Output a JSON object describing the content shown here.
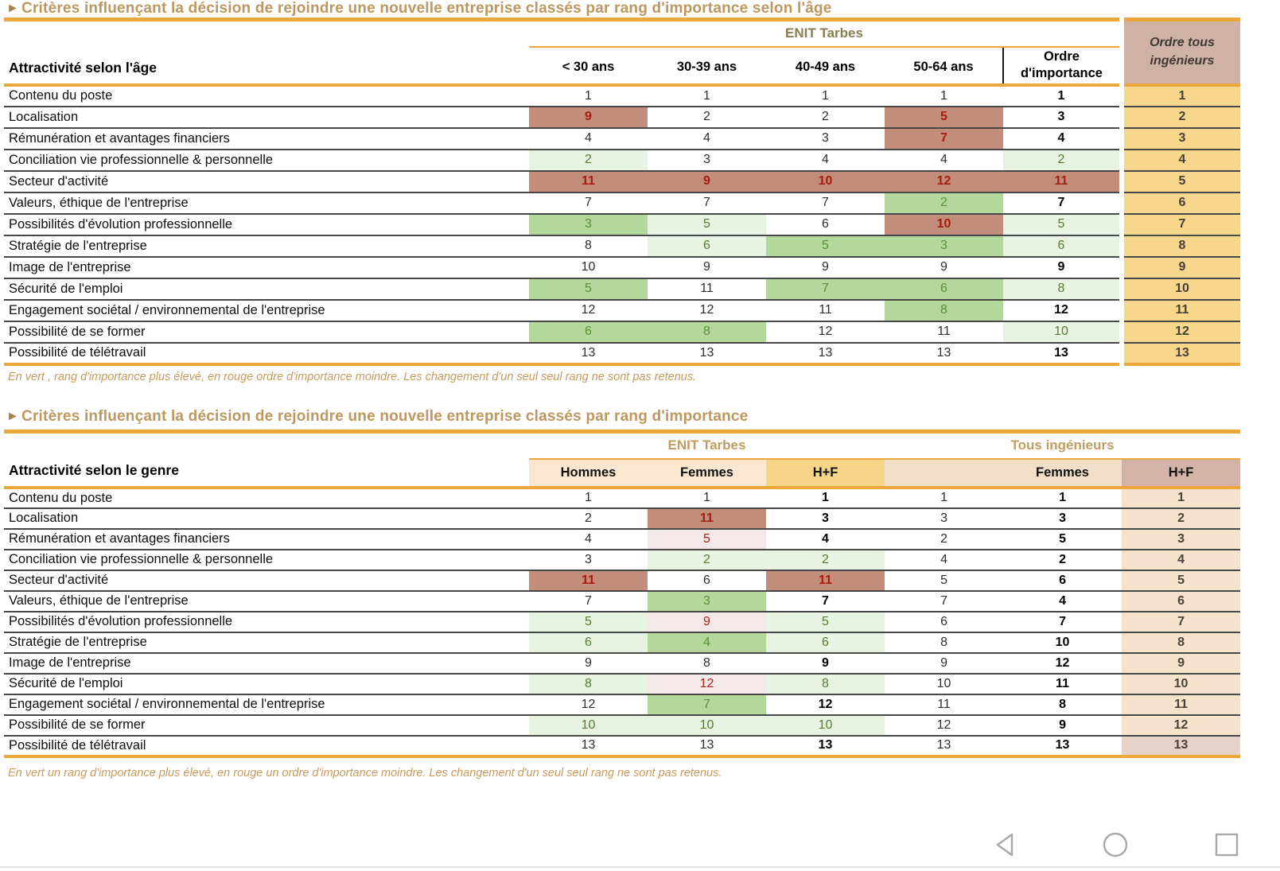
{
  "titles": {
    "arrow": "►",
    "t1": "Critères influençant la décision de rejoindre une nouvelle entreprise classés par rang d'importance selon l'âge",
    "t2": "Critères influençant la décision de rejoindre une nouvelle entreprise classés par rang d'importance"
  },
  "colors": {
    "accent_orange": "#ECA63C",
    "red_cell_bg": "#C38D7C",
    "red_text": "#A81C10",
    "pale_red_cell_bg": "#F2E9E8",
    "strong_green_cell_bg": "#B4D79B",
    "pale_green_cell_bg": "#E9F3E1",
    "green_text": "#527F2F",
    "gold_column_bg": "#F7D78C",
    "rose_header_bg": "#D0B1A5",
    "peach_header_bg": "#FBE7CF",
    "gold_header_bg": "#F5D689",
    "tan_header_bg": "#F1DFC8",
    "tan_column_bg": "#F5E3CD",
    "title_text": "#BD9760",
    "footnote_text": "#C89A5C",
    "nav_icon": "#A8A8A8"
  },
  "table_age": {
    "group": "ENIT Tarbes",
    "corner": "Attractivité selon l'âge",
    "cols": [
      "< 30 ans",
      "30-39 ans",
      "40-49 ans",
      "50-64 ans",
      "Ordre d'importance"
    ],
    "extra_col": "Ordre tous ingénieurs",
    "rows": [
      {
        "label": "Contenu du poste",
        "cells": [
          [
            "1",
            "n"
          ],
          [
            "1",
            "n"
          ],
          [
            "1",
            "n"
          ],
          [
            "1",
            "n"
          ],
          [
            "1",
            "b"
          ],
          [
            "1",
            "y"
          ]
        ]
      },
      {
        "label": "Localisation",
        "cells": [
          [
            "9",
            "r"
          ],
          [
            "2",
            "n"
          ],
          [
            "2",
            "n"
          ],
          [
            "5",
            "r"
          ],
          [
            "3",
            "b"
          ],
          [
            "2",
            "y"
          ]
        ]
      },
      {
        "label": "Rémunération et avantages financiers",
        "cells": [
          [
            "4",
            "n"
          ],
          [
            "4",
            "n"
          ],
          [
            "3",
            "n"
          ],
          [
            "7",
            "r"
          ],
          [
            "4",
            "b"
          ],
          [
            "3",
            "y"
          ]
        ]
      },
      {
        "label": "Conciliation vie professionnelle & personnelle",
        "cells": [
          [
            "2",
            "gp"
          ],
          [
            "3",
            "n"
          ],
          [
            "4",
            "n"
          ],
          [
            "4",
            "n"
          ],
          [
            "2",
            "gp"
          ],
          [
            "4",
            "y"
          ]
        ]
      },
      {
        "label": "Secteur d'activité",
        "cells": [
          [
            "11",
            "r"
          ],
          [
            "9",
            "r"
          ],
          [
            "10",
            "r"
          ],
          [
            "12",
            "r"
          ],
          [
            "11",
            "r"
          ],
          [
            "5",
            "y"
          ]
        ]
      },
      {
        "label": "Valeurs, éthique de l'entreprise",
        "cells": [
          [
            "7",
            "n"
          ],
          [
            "7",
            "n"
          ],
          [
            "7",
            "n"
          ],
          [
            "2",
            "gs"
          ],
          [
            "7",
            "b"
          ],
          [
            "6",
            "y"
          ]
        ]
      },
      {
        "label": "Possibilités d'évolution professionnelle",
        "cells": [
          [
            "3",
            "gs"
          ],
          [
            "5",
            "gp"
          ],
          [
            "6",
            "n"
          ],
          [
            "10",
            "r"
          ],
          [
            "5",
            "gp"
          ],
          [
            "7",
            "y"
          ]
        ]
      },
      {
        "label": "Stratégie de l'entreprise",
        "cells": [
          [
            "8",
            "n"
          ],
          [
            "6",
            "gp"
          ],
          [
            "5",
            "gs"
          ],
          [
            "3",
            "gs"
          ],
          [
            "6",
            "gp"
          ],
          [
            "8",
            "y"
          ]
        ]
      },
      {
        "label": "Image de l'entreprise",
        "cells": [
          [
            "10",
            "n"
          ],
          [
            "9",
            "n"
          ],
          [
            "9",
            "n"
          ],
          [
            "9",
            "n"
          ],
          [
            "9",
            "b"
          ],
          [
            "9",
            "y"
          ]
        ]
      },
      {
        "label": "Sécurité de l'emploi",
        "cells": [
          [
            "5",
            "gs"
          ],
          [
            "11",
            "n"
          ],
          [
            "7",
            "gs"
          ],
          [
            "6",
            "gs"
          ],
          [
            "8",
            "gp"
          ],
          [
            "10",
            "y"
          ]
        ]
      },
      {
        "label": "Engagement sociétal / environnemental de l'entreprise",
        "cells": [
          [
            "12",
            "n"
          ],
          [
            "12",
            "n"
          ],
          [
            "11",
            "n"
          ],
          [
            "8",
            "gs"
          ],
          [
            "12",
            "b"
          ],
          [
            "11",
            "y"
          ]
        ]
      },
      {
        "label": "Possibilité de se former",
        "cells": [
          [
            "6",
            "gs"
          ],
          [
            "8",
            "gs"
          ],
          [
            "12",
            "n"
          ],
          [
            "11",
            "n"
          ],
          [
            "10",
            "gp"
          ],
          [
            "12",
            "y"
          ]
        ]
      },
      {
        "label": "Possibilité de télétravail",
        "cells": [
          [
            "13",
            "n"
          ],
          [
            "13",
            "n"
          ],
          [
            "13",
            "n"
          ],
          [
            "13",
            "n"
          ],
          [
            "13",
            "b"
          ],
          [
            "13",
            "y"
          ]
        ]
      }
    ],
    "footnote": "En vert , rang d'importance plus élevé, en rouge ordre d'importance moindre. Les changement d'un seul seul rang ne sont pas retenus."
  },
  "table_genre": {
    "groups": [
      "ENIT Tarbes",
      "Tous ingénieurs"
    ],
    "corner": "Attractivité selon le genre",
    "cols": [
      "Hommes",
      "Femmes",
      "H+F",
      "",
      "Femmes",
      "H+F"
    ],
    "rows": [
      {
        "label": "Contenu du poste",
        "cells": [
          [
            "1",
            "n"
          ],
          [
            "1",
            "n"
          ],
          [
            "1",
            "b"
          ],
          [
            "1",
            "n"
          ],
          [
            "1",
            "b"
          ],
          [
            "1",
            "t"
          ]
        ]
      },
      {
        "label": "Localisation",
        "cells": [
          [
            "2",
            "n"
          ],
          [
            "11",
            "r"
          ],
          [
            "3",
            "b"
          ],
          [
            "3",
            "n"
          ],
          [
            "3",
            "b"
          ],
          [
            "2",
            "t"
          ]
        ]
      },
      {
        "label": "Rémunération et avantages financiers",
        "cells": [
          [
            "4",
            "n"
          ],
          [
            "5",
            "pr"
          ],
          [
            "4",
            "b"
          ],
          [
            "2",
            "n"
          ],
          [
            "5",
            "b"
          ],
          [
            "3",
            "t"
          ]
        ]
      },
      {
        "label": "Conciliation vie professionnelle & personnelle",
        "cells": [
          [
            "3",
            "n"
          ],
          [
            "2",
            "gp"
          ],
          [
            "2",
            "gp"
          ],
          [
            "4",
            "n"
          ],
          [
            "2",
            "b"
          ],
          [
            "4",
            "t"
          ]
        ]
      },
      {
        "label": "Secteur d'activité",
        "cells": [
          [
            "11",
            "r"
          ],
          [
            "6",
            "n"
          ],
          [
            "11",
            "r"
          ],
          [
            "5",
            "n"
          ],
          [
            "6",
            "b"
          ],
          [
            "5",
            "t"
          ]
        ]
      },
      {
        "label": "Valeurs, éthique de l'entreprise",
        "cells": [
          [
            "7",
            "n"
          ],
          [
            "3",
            "gs"
          ],
          [
            "7",
            "b"
          ],
          [
            "7",
            "n"
          ],
          [
            "4",
            "b"
          ],
          [
            "6",
            "t"
          ]
        ]
      },
      {
        "label": "Possibilités d'évolution professionnelle",
        "cells": [
          [
            "5",
            "gp"
          ],
          [
            "9",
            "pr"
          ],
          [
            "5",
            "gp"
          ],
          [
            "6",
            "n"
          ],
          [
            "7",
            "b"
          ],
          [
            "7",
            "t"
          ]
        ]
      },
      {
        "label": "Stratégie de l'entreprise",
        "cells": [
          [
            "6",
            "gp"
          ],
          [
            "4",
            "gs"
          ],
          [
            "6",
            "gp"
          ],
          [
            "8",
            "n"
          ],
          [
            "10",
            "b"
          ],
          [
            "8",
            "t"
          ]
        ]
      },
      {
        "label": "Image de l'entreprise",
        "cells": [
          [
            "9",
            "n"
          ],
          [
            "8",
            "n"
          ],
          [
            "9",
            "b"
          ],
          [
            "9",
            "n"
          ],
          [
            "12",
            "b"
          ],
          [
            "9",
            "t"
          ]
        ]
      },
      {
        "label": "Sécurité de l'emploi",
        "cells": [
          [
            "8",
            "gp"
          ],
          [
            "12",
            "pr"
          ],
          [
            "8",
            "gp"
          ],
          [
            "10",
            "n"
          ],
          [
            "11",
            "b"
          ],
          [
            "10",
            "t"
          ]
        ]
      },
      {
        "label": "Engagement sociétal / environnemental de l'entreprise",
        "cells": [
          [
            "12",
            "n"
          ],
          [
            "7",
            "gs"
          ],
          [
            "12",
            "b"
          ],
          [
            "11",
            "n"
          ],
          [
            "8",
            "b"
          ],
          [
            "11",
            "t"
          ]
        ]
      },
      {
        "label": "Possibilité de se former",
        "cells": [
          [
            "10",
            "gp"
          ],
          [
            "10",
            "gp"
          ],
          [
            "10",
            "gp"
          ],
          [
            "12",
            "n"
          ],
          [
            "9",
            "b"
          ],
          [
            "12",
            "t"
          ]
        ]
      },
      {
        "label": "Possibilité de télétravail",
        "cells": [
          [
            "13",
            "n"
          ],
          [
            "13",
            "n"
          ],
          [
            "13",
            "b"
          ],
          [
            "13",
            "n"
          ],
          [
            "13",
            "b"
          ],
          [
            "13",
            "tm"
          ]
        ]
      }
    ],
    "footnote": "En vert un rang d'importance plus élevé, en rouge un ordre d'importance moindre. Les changement d'un seul seul rang ne sont pas retenus."
  },
  "navbar": {
    "back": "back",
    "home": "home",
    "recents": "recents"
  }
}
